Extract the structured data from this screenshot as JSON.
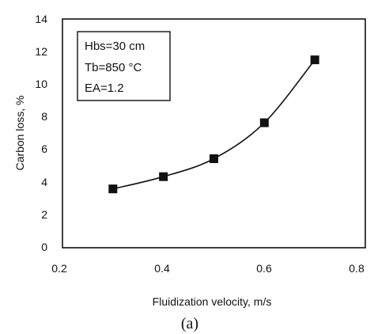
{
  "chart_data": {
    "type": "line",
    "x": [
      0.3,
      0.4,
      0.5,
      0.6,
      0.7
    ],
    "series": [
      {
        "values": [
          3.6,
          4.35,
          5.45,
          7.65,
          11.5
        ],
        "color": "#111111",
        "marker": "square"
      }
    ],
    "xlabel": "Fluidization velocity, m/s",
    "ylabel": "Carbon loss, %",
    "xlim": [
      0.2,
      0.8
    ],
    "ylim": [
      0,
      14
    ],
    "xticks": [
      "0.2",
      "0.4",
      "0.6",
      "0.8"
    ],
    "yticks": [
      "0",
      "2",
      "4",
      "6",
      "8",
      "10",
      "12",
      "14"
    ],
    "annotation": [
      "Hbs=30 cm",
      "Tb=850 °C",
      "EA=1.2"
    ],
    "caption": "(a)",
    "grid": false
  }
}
